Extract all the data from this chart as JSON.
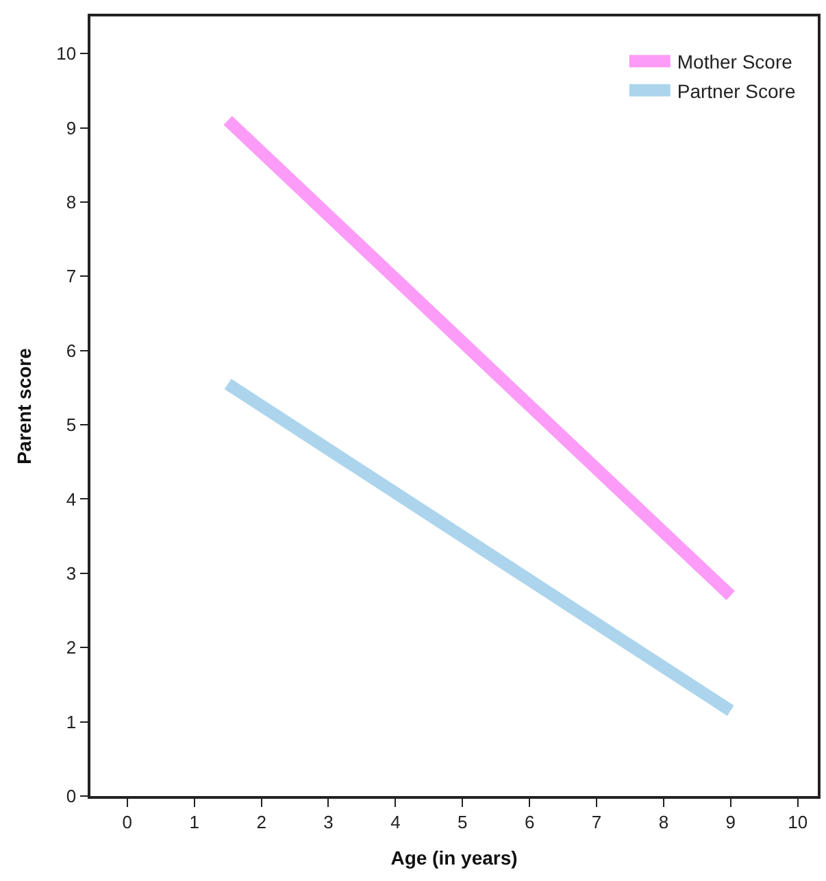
{
  "chart_data": {
    "type": "line",
    "xlabel": "Age (in years)",
    "ylabel": "Parent score",
    "x": [
      1.5,
      9
    ],
    "series": [
      {
        "name": "Mother Score",
        "color": "#fc9cf8",
        "values": [
          9.1,
          2.7
        ]
      },
      {
        "name": "Partner Score",
        "color": "#acd5ed",
        "values": [
          5.55,
          1.15
        ]
      }
    ],
    "xlim": [
      -0.55,
      10.3
    ],
    "xticks": [
      0,
      1,
      2,
      3,
      4,
      5,
      6,
      7,
      8,
      9,
      10
    ],
    "ylim": [
      0,
      10.5
    ],
    "yticks": [
      0,
      1,
      2,
      3,
      4,
      5,
      6,
      7,
      8,
      9,
      10
    ],
    "legend": "top right",
    "marker": "none",
    "line_style": "solid"
  }
}
